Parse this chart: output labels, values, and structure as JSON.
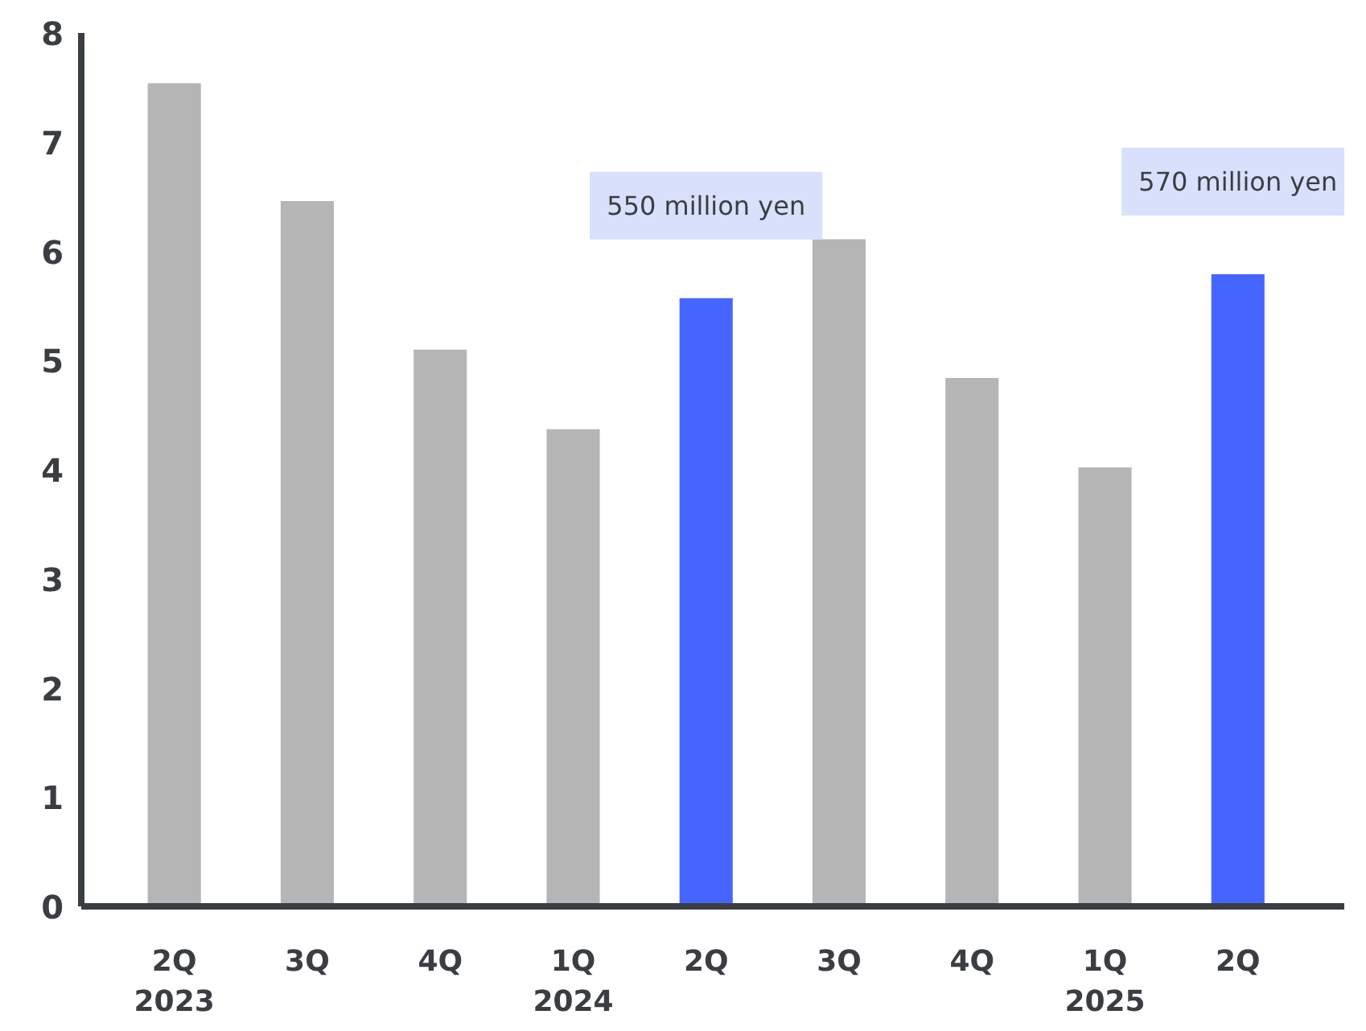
{
  "chart_data": {
    "type": "bar",
    "categories": [
      "2Q\n2023",
      "3Q",
      "4Q",
      "1Q\n2024",
      "2Q",
      "3Q",
      "4Q",
      "1Q\n2025",
      "2Q"
    ],
    "values": [
      7.54,
      6.46,
      5.1,
      4.37,
      5.57,
      6.11,
      4.84,
      4.02,
      5.79
    ],
    "colors": [
      "#b5b5b5",
      "#b5b5b5",
      "#b5b5b5",
      "#b5b5b5",
      "#4466ff",
      "#b5b5b5",
      "#b5b5b5",
      "#b5b5b5",
      "#4466ff"
    ],
    "annotations": [
      "550 million yen",
      "570 million yen"
    ],
    "ylim": [
      0,
      8
    ],
    "yticks": [
      0,
      1,
      2,
      3,
      4,
      5,
      6,
      7,
      8
    ],
    "grid": false
  }
}
